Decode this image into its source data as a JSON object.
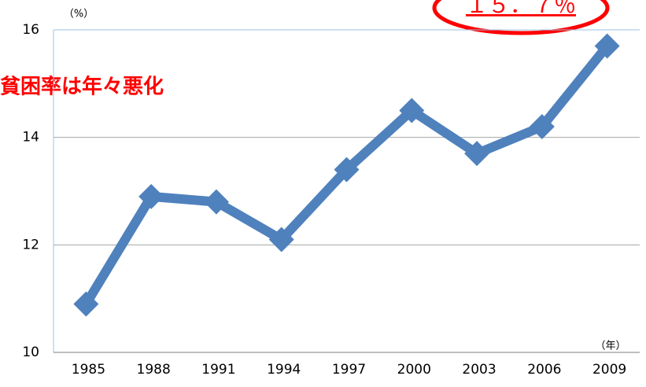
{
  "chart_data": {
    "type": "line",
    "y_label": "（%）",
    "x_label": "（年）",
    "annotations": [
      "１５．７％",
      "貧困率は年々悪化"
    ],
    "categories": [
      "1985",
      "1988",
      "1991",
      "1994",
      "1997",
      "2000",
      "2003",
      "2006",
      "2009"
    ],
    "values": [
      10.9,
      12.9,
      12.8,
      12.1,
      13.4,
      14.5,
      13.7,
      14.2,
      15.7
    ],
    "color": "#4f81bd",
    "ylim": [
      10,
      16
    ],
    "yticks": [
      10,
      12,
      14,
      16
    ],
    "grid": true
  }
}
